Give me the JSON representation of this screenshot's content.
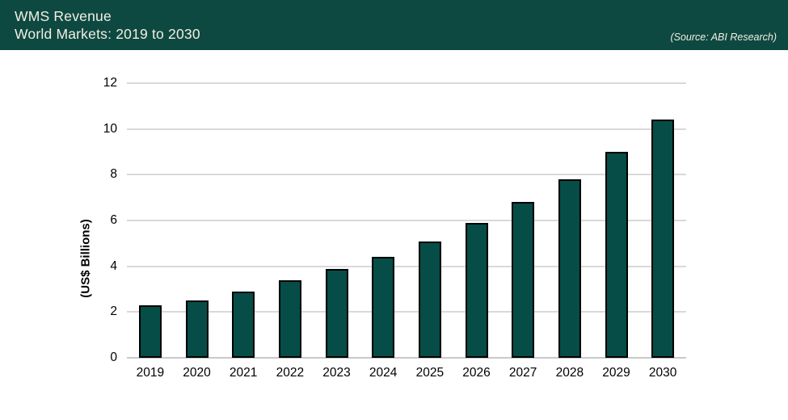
{
  "header": {
    "title_line1": "WMS Revenue",
    "title_line2": "World Markets: 2019 to 2030",
    "source": "(Source: ABI Research)",
    "bg_color": "#0e4941",
    "text_color": "#f2efe3"
  },
  "chart_data": {
    "type": "bar",
    "title": "WMS Revenue",
    "subtitle": "World Markets: 2019 to 2030",
    "source": "(Source: ABI Research)",
    "categories": [
      "2019",
      "2020",
      "2021",
      "2022",
      "2023",
      "2024",
      "2025",
      "2026",
      "2027",
      "2028",
      "2029",
      "2030"
    ],
    "values": [
      2.3,
      2.5,
      2.9,
      3.4,
      3.9,
      4.4,
      5.1,
      5.9,
      6.8,
      7.8,
      9.0,
      10.4
    ],
    "xlabel": "",
    "ylabel": "(US$ Billions)",
    "ylim": [
      0,
      12
    ],
    "yticks": [
      0,
      2,
      4,
      6,
      8,
      10,
      12
    ],
    "grid": true,
    "legend": false,
    "bar_color": "#064d47",
    "bar_border_color": "#000000",
    "gridline_color": "#d9d9d9"
  }
}
